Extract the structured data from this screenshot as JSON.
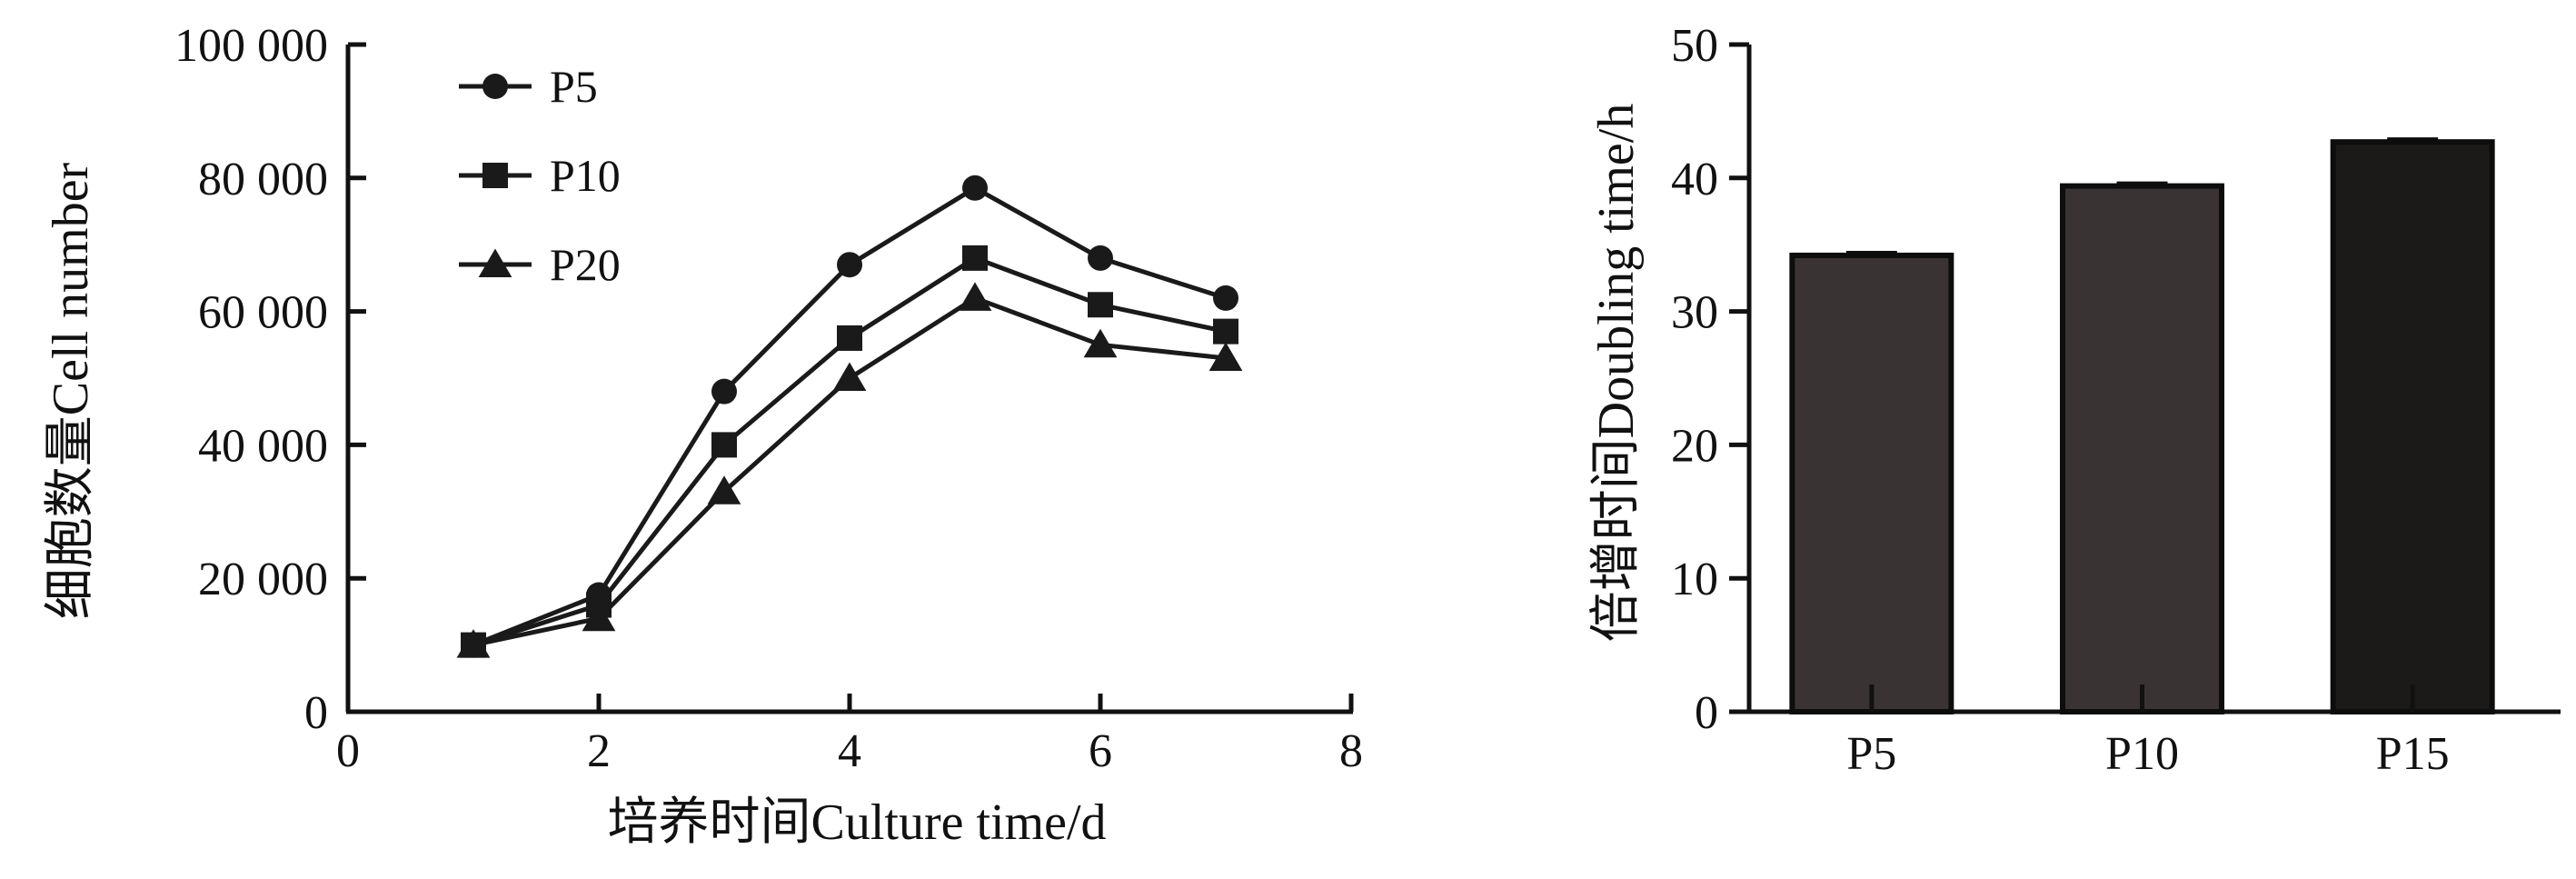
{
  "chart_data": [
    {
      "type": "line",
      "xlabel": "培养时间Culture time/d",
      "ylabel": "细胞数量Cell number",
      "xlim": [
        0,
        8
      ],
      "ylim": [
        0,
        100000
      ],
      "xticks": [
        "0",
        "2",
        "4",
        "6",
        "8"
      ],
      "yticks": [
        "0",
        "20 000",
        "40 000",
        "60 000",
        "80 000",
        "100 000"
      ],
      "legend_position": "top-left",
      "grid": false,
      "x": [
        1,
        2,
        3,
        4,
        5,
        6,
        7
      ],
      "series": [
        {
          "name": "P5",
          "marker": "circle",
          "values": [
            10000,
            17500,
            48000,
            67000,
            78500,
            68000,
            62000
          ]
        },
        {
          "name": "P10",
          "marker": "square",
          "values": [
            10000,
            16000,
            40000,
            56000,
            68000,
            61000,
            57000
          ]
        },
        {
          "name": "P20",
          "marker": "triangle",
          "values": [
            10000,
            14000,
            33000,
            50000,
            62000,
            55000,
            53000
          ]
        }
      ]
    },
    {
      "type": "bar",
      "xlabel": "",
      "ylabel": "倍增时间Doubling time/h",
      "ylim": [
        0,
        50
      ],
      "yticks": [
        "0",
        "10",
        "20",
        "30",
        "40",
        "50"
      ],
      "categories": [
        "P5",
        "P10",
        "P15"
      ],
      "values": [
        34.2,
        39.4,
        42.7
      ],
      "colors": [
        "#3a3333",
        "#3a3333",
        "#1c1a19"
      ],
      "grid": false
    }
  ]
}
